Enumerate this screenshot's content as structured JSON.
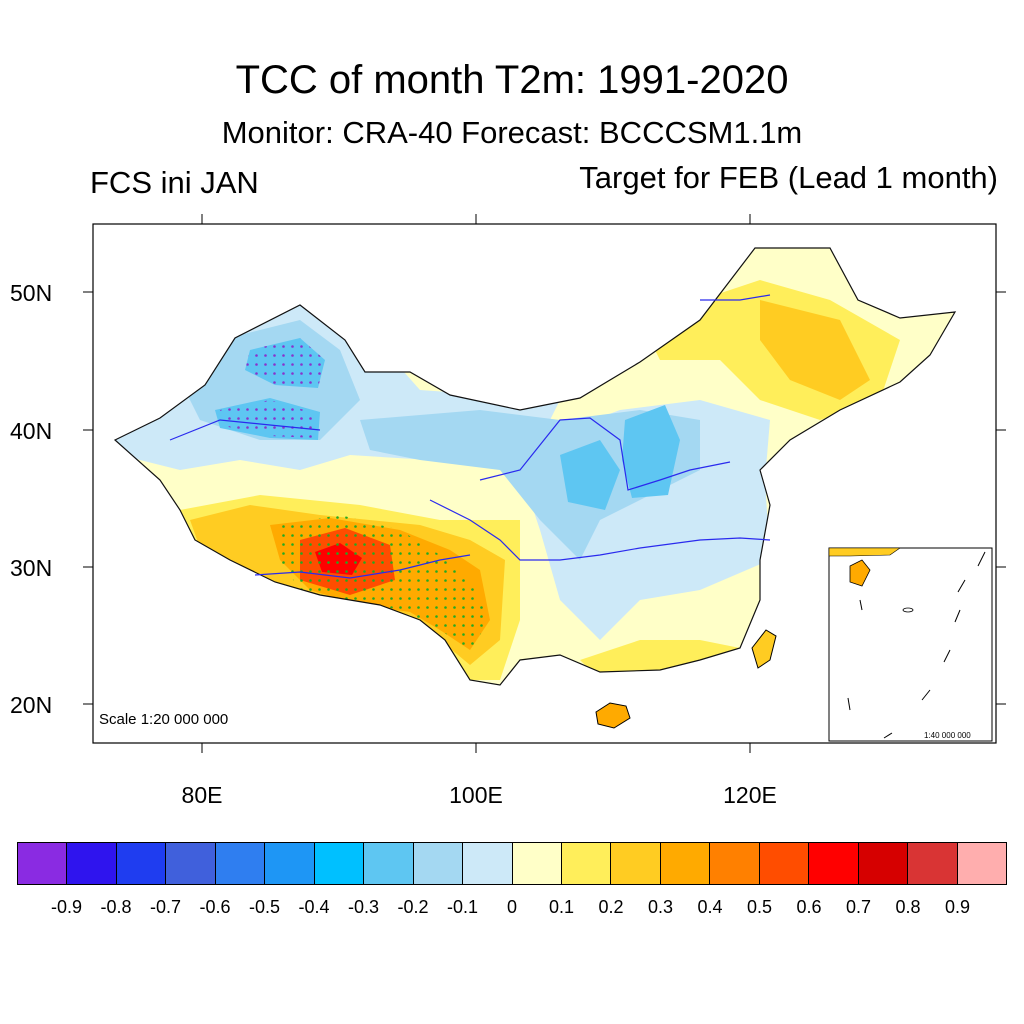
{
  "header": {
    "title": "TCC of month T2m: 1991-2020",
    "subtitle": "Monitor: CRA-40   Forecast: BCCCSM1.1m",
    "left_label": "FCS ini JAN",
    "right_label": "Target for FEB (Lead 1 month)"
  },
  "map": {
    "lat_labels": [
      "50N",
      "40N",
      "30N",
      "20N"
    ],
    "lon_labels": [
      "80E",
      "100E",
      "120E"
    ],
    "scale_main": "Scale 1:20 000 000",
    "scale_inset": "1:40 000 000"
  },
  "colorbar": {
    "labels": [
      "-0.9",
      "-0.8",
      "-0.7",
      "-0.6",
      "-0.5",
      "-0.4",
      "-0.3",
      "-0.2",
      "-0.1",
      "0",
      "0.1",
      "0.2",
      "0.3",
      "0.4",
      "0.5",
      "0.6",
      "0.7",
      "0.8",
      "0.9"
    ],
    "colors": [
      "#8a2be2",
      "#2f14ee",
      "#1f3df0",
      "#4060dc",
      "#2f7ef0",
      "#1e96f5",
      "#00c0ff",
      "#5ec6f2",
      "#a4d8f2",
      "#cde9f8",
      "#ffffc8",
      "#ffee5a",
      "#ffcc22",
      "#ffaa00",
      "#ff8000",
      "#ff4d00",
      "#ff0000",
      "#d60000",
      "#d93434",
      "#ffaeae"
    ]
  }
}
